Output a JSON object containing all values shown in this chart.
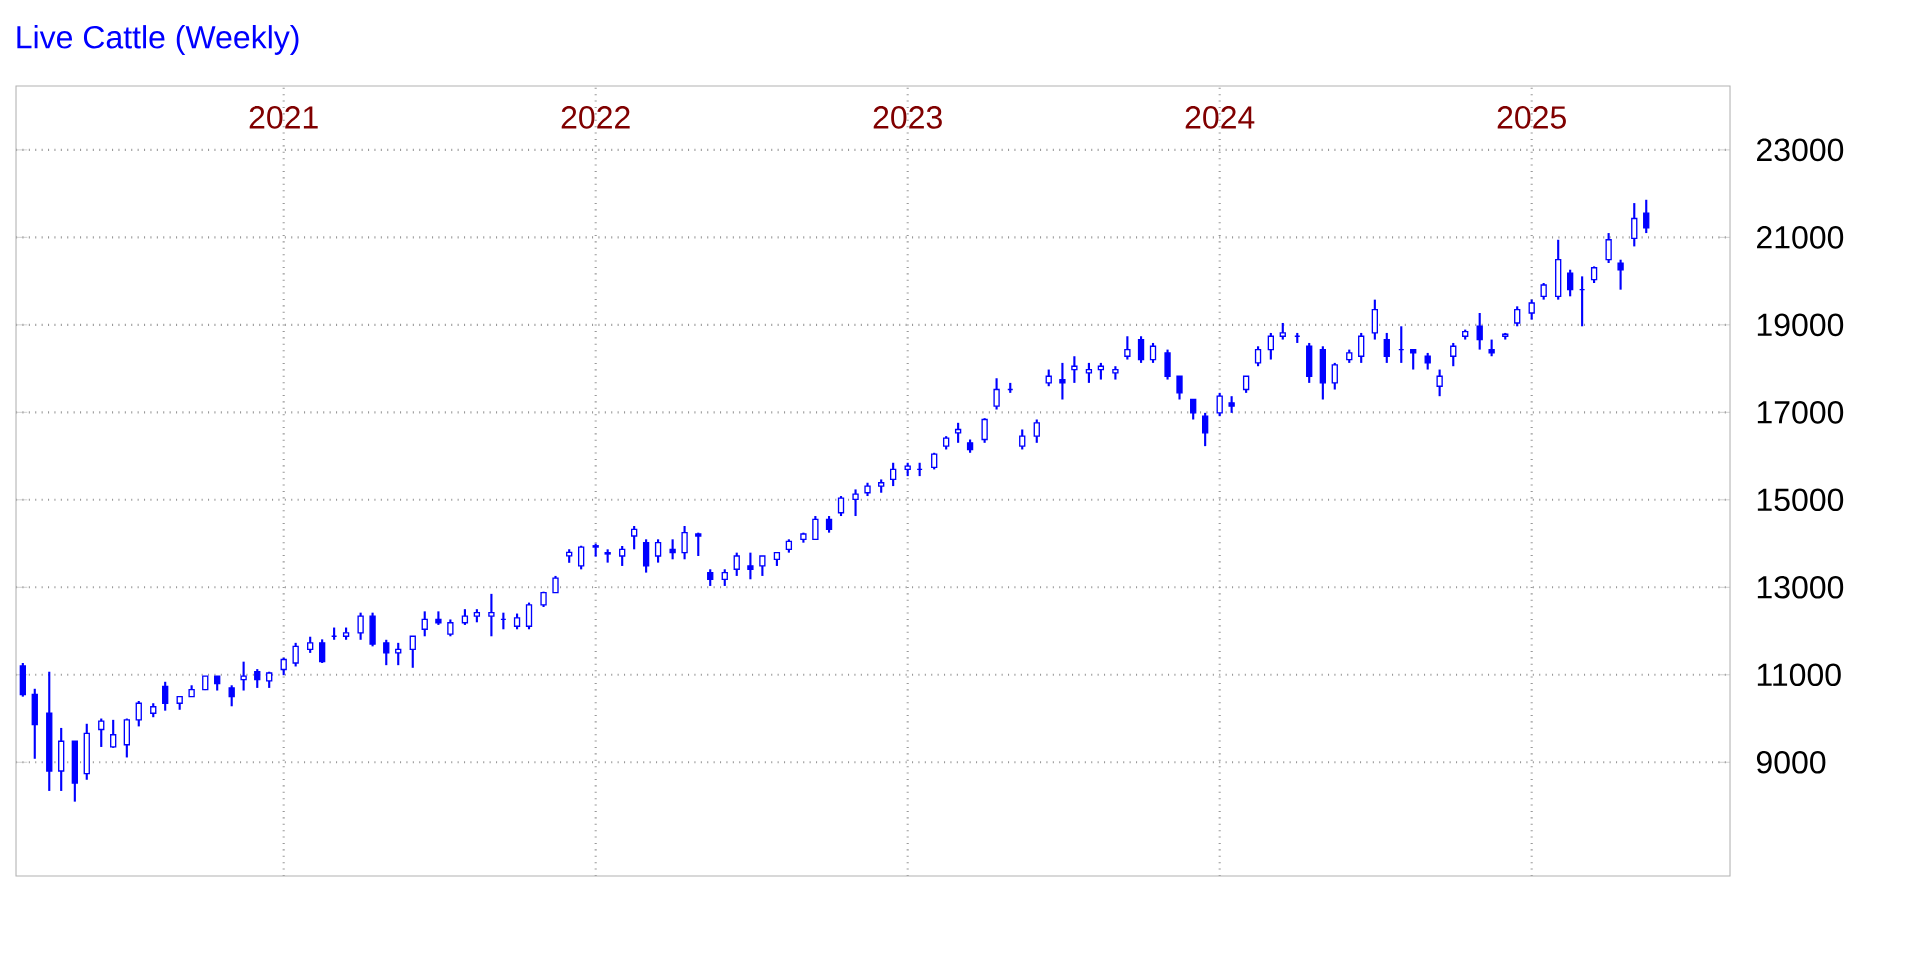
{
  "chart_data": {
    "type": "candlestick",
    "title": "Live Cattle (Weekly)",
    "color": "#0000ff",
    "grid": true,
    "xlim": [
      "2020-02-22",
      "2025-08-21"
    ],
    "xticks": [
      "2021",
      "2022",
      "2023",
      "2024",
      "2025"
    ],
    "ylim": [
      6400,
      24460
    ],
    "yticks": [
      9000,
      11000,
      13000,
      15000,
      17000,
      19000,
      21000,
      23000
    ],
    "x": [
      "2020-03-01",
      "2020-03-15",
      "2020-04-01",
      "2020-04-15",
      "2020-05-01",
      "2020-05-15",
      "2020-06-01",
      "2020-06-15",
      "2020-07-01",
      "2020-07-15",
      "2020-08-01",
      "2020-08-15",
      "2020-09-01",
      "2020-09-15",
      "2020-10-01",
      "2020-10-15",
      "2020-11-01",
      "2020-11-15",
      "2020-12-01",
      "2020-12-15",
      "2021-01-01",
      "2021-01-15",
      "2021-02-01",
      "2021-02-15",
      "2021-03-01",
      "2021-03-15",
      "2021-04-01",
      "2021-04-15",
      "2021-05-01",
      "2021-05-15",
      "2021-06-01",
      "2021-06-15",
      "2021-07-01",
      "2021-07-15",
      "2021-08-01",
      "2021-08-15",
      "2021-09-01",
      "2021-09-15",
      "2021-10-01",
      "2021-10-15",
      "2021-11-01",
      "2021-11-15",
      "2021-12-01",
      "2021-12-15",
      "2022-01-01",
      "2022-01-15",
      "2022-02-01",
      "2022-02-15",
      "2022-03-01",
      "2022-03-15",
      "2022-04-01",
      "2022-04-15",
      "2022-05-01",
      "2022-05-15",
      "2022-06-01",
      "2022-06-15",
      "2022-07-01",
      "2022-07-15",
      "2022-08-01",
      "2022-08-15",
      "2022-09-01",
      "2022-09-15",
      "2022-10-01",
      "2022-10-15",
      "2022-11-01",
      "2022-11-15",
      "2022-12-01",
      "2022-12-15",
      "2023-01-01",
      "2023-01-15",
      "2023-02-01",
      "2023-02-15",
      "2023-03-01",
      "2023-03-15",
      "2023-04-01",
      "2023-04-15",
      "2023-05-01",
      "2023-05-15",
      "2023-06-01",
      "2023-06-15",
      "2023-07-01",
      "2023-07-15",
      "2023-08-01",
      "2023-08-15",
      "2023-09-01",
      "2023-09-15",
      "2023-10-01",
      "2023-10-15",
      "2023-11-01",
      "2023-11-15",
      "2023-12-01",
      "2023-12-15",
      "2024-01-01",
      "2024-01-15",
      "2024-02-01",
      "2024-02-15",
      "2024-03-01",
      "2024-03-15",
      "2024-04-01",
      "2024-04-15",
      "2024-05-01",
      "2024-05-15",
      "2024-06-01",
      "2024-06-15",
      "2024-07-01",
      "2024-07-15",
      "2024-08-01",
      "2024-08-15",
      "2024-09-01",
      "2024-09-15",
      "2024-10-01",
      "2024-10-15",
      "2024-11-01",
      "2024-11-15",
      "2024-12-01",
      "2024-12-15",
      "2025-01-01",
      "2025-01-15",
      "2025-02-01",
      "2025-02-15",
      "2025-03-01",
      "2025-03-15",
      "2025-04-01",
      "2025-04-15",
      "2025-05-01",
      "2025-05-15"
    ],
    "ohlc": [
      [
        11200,
        11270,
        10500,
        10550
      ],
      [
        10550,
        10680,
        9080,
        9860
      ],
      [
        10120,
        11070,
        8345,
        8800
      ],
      [
        8800,
        9785,
        8345,
        9480
      ],
      [
        9480,
        9480,
        8100,
        8525
      ],
      [
        8740,
        9880,
        8600,
        9660
      ],
      [
        9750,
        10000,
        9350,
        9940
      ],
      [
        9350,
        9970,
        9330,
        9630
      ],
      [
        9400,
        10000,
        9110,
        9970
      ],
      [
        9970,
        10400,
        9820,
        10350
      ],
      [
        10120,
        10350,
        10030,
        10270
      ],
      [
        10735,
        10840,
        10180,
        10350
      ],
      [
        10350,
        10500,
        10200,
        10500
      ],
      [
        10500,
        10760,
        10500,
        10660
      ],
      [
        10660,
        10970,
        10650,
        10970
      ],
      [
        10970,
        10970,
        10640,
        10800
      ],
      [
        10700,
        10760,
        10280,
        10500
      ],
      [
        10890,
        11300,
        10640,
        10970
      ],
      [
        11070,
        11130,
        10700,
        10890
      ],
      [
        10860,
        11070,
        10700,
        11040
      ],
      [
        11120,
        11390,
        10990,
        11350
      ],
      [
        11270,
        11730,
        11190,
        11650
      ],
      [
        11580,
        11870,
        11500,
        11730
      ],
      [
        11730,
        11810,
        11270,
        11300
      ],
      [
        11880,
        12080,
        11800,
        11880
      ],
      [
        11880,
        12080,
        11800,
        11960
      ],
      [
        11960,
        12420,
        11800,
        12340
      ],
      [
        12340,
        12420,
        11650,
        11700
      ],
      [
        11730,
        11800,
        11220,
        11500
      ],
      [
        11500,
        11730,
        11220,
        11580
      ],
      [
        11580,
        11880,
        11160,
        11880
      ],
      [
        12040,
        12450,
        11880,
        12265
      ],
      [
        12265,
        12450,
        12140,
        12190
      ],
      [
        11930,
        12265,
        11880,
        12190
      ],
      [
        12190,
        12500,
        12140,
        12340
      ],
      [
        12340,
        12500,
        12200,
        12420
      ],
      [
        12340,
        12850,
        11880,
        12420
      ],
      [
        12265,
        12420,
        12040,
        12265
      ],
      [
        12110,
        12400,
        12040,
        12300
      ],
      [
        12110,
        12650,
        12040,
        12600
      ],
      [
        12600,
        12900,
        12550,
        12880
      ],
      [
        12880,
        13260,
        12880,
        13210
      ],
      [
        13720,
        13870,
        13560,
        13800
      ],
      [
        13490,
        13950,
        13410,
        13920
      ],
      [
        13920,
        14000,
        13700,
        13950
      ],
      [
        13792,
        13868,
        13564,
        13762
      ],
      [
        13716,
        13944,
        13488,
        13868
      ],
      [
        14172,
        14401,
        13868,
        14325
      ],
      [
        14020,
        14097,
        13336,
        13488
      ],
      [
        13716,
        14097,
        13564,
        14020
      ],
      [
        13868,
        14097,
        13640,
        13792
      ],
      [
        13792,
        14401,
        13640,
        14249
      ],
      [
        14218,
        14249,
        13716,
        14172
      ],
      [
        13336,
        13412,
        13031,
        13183
      ],
      [
        13183,
        13412,
        13031,
        13336
      ],
      [
        13412,
        13792,
        13260,
        13716
      ],
      [
        13488,
        13792,
        13183,
        13412
      ],
      [
        13488,
        13716,
        13260,
        13716
      ],
      [
        13640,
        13792,
        13488,
        13792
      ],
      [
        13868,
        14097,
        13792,
        14051
      ],
      [
        14097,
        14249,
        14020,
        14218
      ],
      [
        14097,
        14629,
        14097,
        14553
      ],
      [
        14553,
        14629,
        14249,
        14325
      ],
      [
        14705,
        15086,
        14629,
        15040
      ],
      [
        15010,
        15238,
        14629,
        15131
      ],
      [
        15162,
        15390,
        15086,
        15314
      ],
      [
        15314,
        15466,
        15162,
        15390
      ],
      [
        15466,
        15847,
        15314,
        15695
      ],
      [
        15695,
        15847,
        15542,
        15771
      ],
      [
        15695,
        15847,
        15542,
        15695
      ],
      [
        15740,
        16075,
        15695,
        16044
      ],
      [
        16227,
        16455,
        16151,
        16410
      ],
      [
        16531,
        16760,
        16303,
        16607
      ],
      [
        16303,
        16379,
        16075,
        16151
      ],
      [
        16379,
        16866,
        16303,
        16836
      ],
      [
        17140,
        17779,
        17064,
        17521
      ],
      [
        17521,
        17673,
        17445,
        17521
      ],
      [
        16227,
        16608,
        16151,
        16455
      ],
      [
        16455,
        16836,
        16303,
        16760
      ],
      [
        17673,
        17978,
        17597,
        17825
      ],
      [
        17749,
        18130,
        17293,
        17673
      ],
      [
        17978,
        18282,
        17673,
        18054
      ],
      [
        17901,
        18130,
        17673,
        17978
      ],
      [
        17978,
        18130,
        17749,
        18054
      ],
      [
        17901,
        18054,
        17749,
        17978
      ],
      [
        18282,
        18739,
        18206,
        18434
      ],
      [
        18663,
        18739,
        18130,
        18206
      ],
      [
        18206,
        18586,
        18130,
        18510
      ],
      [
        18358,
        18434,
        17749,
        17825
      ],
      [
        17825,
        17825,
        17293,
        17445
      ],
      [
        17293,
        17293,
        16836,
        16988
      ],
      [
        16912,
        16988,
        16227,
        16532
      ],
      [
        16988,
        17445,
        16912,
        17369
      ],
      [
        17217,
        17369,
        16988,
        17141
      ],
      [
        17521,
        17825,
        17445,
        17825
      ],
      [
        18130,
        18510,
        18054,
        18434
      ],
      [
        18434,
        18815,
        18206,
        18739
      ],
      [
        18739,
        19043,
        18663,
        18815
      ],
      [
        18739,
        18815,
        18586,
        18739
      ],
      [
        18510,
        18586,
        17673,
        17825
      ],
      [
        18434,
        18510,
        17293,
        17673
      ],
      [
        17673,
        18130,
        17521,
        18084
      ],
      [
        18206,
        18434,
        18130,
        18358
      ],
      [
        18282,
        18815,
        18130,
        18739
      ],
      [
        18815,
        19576,
        18663,
        19347
      ],
      [
        18663,
        18815,
        18130,
        18282
      ],
      [
        18434,
        18967,
        18130,
        18434
      ],
      [
        18434,
        18434,
        17978,
        18358
      ],
      [
        18282,
        18358,
        17978,
        18130
      ],
      [
        17597,
        17978,
        17369,
        17825
      ],
      [
        18282,
        18586,
        18054,
        18510
      ],
      [
        18739,
        18891,
        18663,
        18845
      ],
      [
        18967,
        19271,
        18434,
        18663
      ],
      [
        18434,
        18663,
        18282,
        18358
      ],
      [
        18739,
        18815,
        18663,
        18784
      ],
      [
        19043,
        19423,
        18967,
        19347
      ],
      [
        19271,
        19576,
        19119,
        19499
      ],
      [
        19652,
        19956,
        19576,
        19910
      ],
      [
        19652,
        20945,
        19576,
        20489
      ],
      [
        20184,
        20260,
        19652,
        19804
      ],
      [
        19804,
        20108,
        18967,
        19804
      ],
      [
        20032,
        20336,
        19956,
        20306
      ],
      [
        20489,
        21098,
        20413,
        20945
      ],
      [
        20412,
        20489,
        19804,
        20260
      ],
      [
        20976,
        21783,
        20793,
        21432
      ],
      [
        21554,
        21859,
        21098,
        21219
      ]
    ]
  }
}
